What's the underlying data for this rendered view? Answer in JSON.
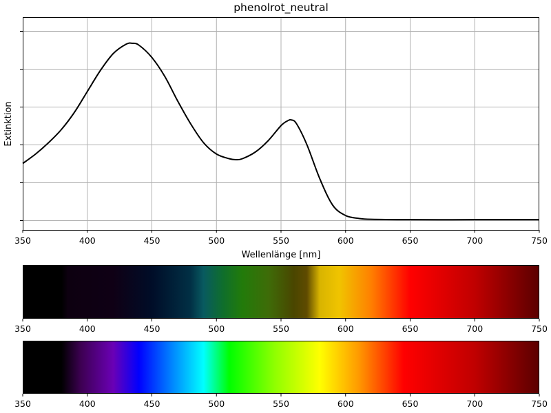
{
  "chart_data": [
    {
      "type": "line",
      "title": "phenolrot_neutral",
      "xlabel": "Wellenlänge [nm]",
      "ylabel": "Extinktion",
      "xlim": [
        350,
        750
      ],
      "ylim": [
        0,
        1.0
      ],
      "grid": true,
      "legend": "none",
      "x_ticks": [
        350,
        400,
        450,
        500,
        550,
        600,
        650,
        700,
        750
      ],
      "y_ticks_labeled": false,
      "series": [
        {
          "color": "#000000",
          "x": [
            350,
            360,
            370,
            380,
            390,
            400,
            410,
            420,
            430,
            435,
            440,
            450,
            460,
            470,
            480,
            490,
            500,
            510,
            515,
            520,
            530,
            540,
            550,
            555,
            558,
            562,
            570,
            580,
            590,
            600,
            610,
            620,
            650,
            700,
            750
          ],
          "y": [
            0.3,
            0.35,
            0.41,
            0.48,
            0.57,
            0.68,
            0.79,
            0.88,
            0.93,
            0.935,
            0.925,
            0.86,
            0.76,
            0.63,
            0.51,
            0.41,
            0.35,
            0.325,
            0.32,
            0.325,
            0.36,
            0.42,
            0.5,
            0.525,
            0.53,
            0.51,
            0.4,
            0.22,
            0.08,
            0.025,
            0.01,
            0.005,
            0.003,
            0.003,
            0.003
          ]
        }
      ]
    },
    {
      "type": "heatmap",
      "name": "absorption-color-band",
      "x_ticks": [
        350,
        400,
        450,
        500,
        550,
        600,
        650,
        700,
        750
      ],
      "stops": [
        {
          "nm": 350,
          "color": "#000000"
        },
        {
          "nm": 380,
          "color": "#000000"
        },
        {
          "nm": 385,
          "color": "#0d0010"
        },
        {
          "nm": 420,
          "color": "#0f0015"
        },
        {
          "nm": 450,
          "color": "#000d28"
        },
        {
          "nm": 480,
          "color": "#013045"
        },
        {
          "nm": 490,
          "color": "#085a60"
        },
        {
          "nm": 505,
          "color": "#0f6e2c"
        },
        {
          "nm": 520,
          "color": "#227b0a"
        },
        {
          "nm": 540,
          "color": "#3e6c08"
        },
        {
          "nm": 560,
          "color": "#4a4600"
        },
        {
          "nm": 570,
          "color": "#5f4b00"
        },
        {
          "nm": 580,
          "color": "#d8b400"
        },
        {
          "nm": 595,
          "color": "#f0c400"
        },
        {
          "nm": 620,
          "color": "#ff7f00"
        },
        {
          "nm": 640,
          "color": "#ff2a00"
        },
        {
          "nm": 650,
          "color": "#ff0000"
        },
        {
          "nm": 700,
          "color": "#c00000"
        },
        {
          "nm": 750,
          "color": "#5a0000"
        }
      ]
    },
    {
      "type": "heatmap",
      "name": "visible-spectrum-band",
      "x_ticks": [
        350,
        400,
        450,
        500,
        550,
        600,
        650,
        700,
        750
      ],
      "stops": [
        {
          "nm": 350,
          "color": "#000000"
        },
        {
          "nm": 380,
          "color": "#000000"
        },
        {
          "nm": 395,
          "color": "#3d0052"
        },
        {
          "nm": 420,
          "color": "#6a00b5"
        },
        {
          "nm": 440,
          "color": "#0000ff"
        },
        {
          "nm": 465,
          "color": "#0082ff"
        },
        {
          "nm": 490,
          "color": "#00ffff"
        },
        {
          "nm": 510,
          "color": "#00ff00"
        },
        {
          "nm": 545,
          "color": "#8fff00"
        },
        {
          "nm": 580,
          "color": "#ffff00"
        },
        {
          "nm": 610,
          "color": "#ff9a00"
        },
        {
          "nm": 645,
          "color": "#ff0000"
        },
        {
          "nm": 700,
          "color": "#c00000"
        },
        {
          "nm": 750,
          "color": "#5a0000"
        }
      ]
    }
  ]
}
